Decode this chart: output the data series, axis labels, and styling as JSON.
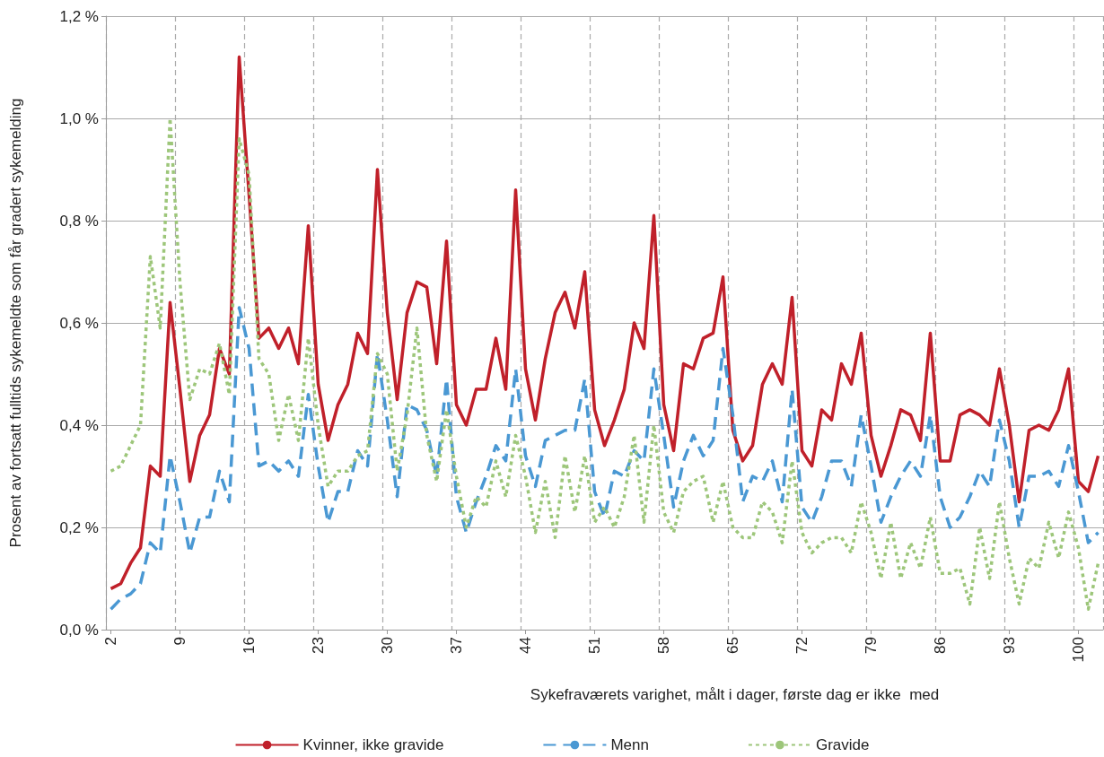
{
  "chart_data": {
    "type": "line",
    "xlabel": "Sykefraværets varighet, målt i dager, første dag er ikke  med",
    "ylabel": "Prosent av fortsatt fulltids sykemeldte som får gradert sykemelding",
    "categories": [
      "2",
      null,
      null,
      null,
      null,
      null,
      null,
      "9",
      null,
      null,
      null,
      null,
      null,
      null,
      "16",
      null,
      null,
      null,
      null,
      null,
      null,
      "23",
      null,
      null,
      null,
      null,
      null,
      null,
      "30",
      null,
      null,
      null,
      null,
      null,
      null,
      "37",
      null,
      null,
      null,
      null,
      null,
      null,
      "44",
      null,
      null,
      null,
      null,
      null,
      null,
      "51",
      null,
      null,
      null,
      null,
      null,
      null,
      "58",
      null,
      null,
      null,
      null,
      null,
      null,
      "65",
      null,
      null,
      null,
      null,
      null,
      null,
      "72",
      null,
      null,
      null,
      null,
      null,
      null,
      "79",
      null,
      null,
      null,
      null,
      null,
      null,
      "86",
      null,
      null,
      null,
      null,
      null,
      null,
      "93",
      null,
      null,
      null,
      null,
      null,
      null,
      "100",
      null,
      null
    ],
    "series": [
      {
        "name": "Kvinner, ikke gravide",
        "color": "#c0202a",
        "line_style": "solid",
        "values": [
          0.08,
          0.09,
          0.13,
          0.16,
          0.32,
          0.3,
          0.64,
          0.47,
          0.29,
          0.38,
          0.42,
          0.55,
          0.5,
          1.12,
          0.85,
          0.57,
          0.59,
          0.55,
          0.59,
          0.52,
          0.79,
          0.48,
          0.37,
          0.44,
          0.48,
          0.58,
          0.54,
          0.9,
          0.62,
          0.45,
          0.62,
          0.68,
          0.67,
          0.52,
          0.76,
          0.44,
          0.4,
          0.47,
          0.47,
          0.57,
          0.47,
          0.86,
          0.51,
          0.41,
          0.53,
          0.62,
          0.66,
          0.59,
          0.7,
          0.43,
          0.36,
          0.41,
          0.47,
          0.6,
          0.55,
          0.81,
          0.44,
          0.35,
          0.52,
          0.51,
          0.57,
          0.58,
          0.69,
          0.39,
          0.33,
          0.36,
          0.48,
          0.52,
          0.48,
          0.65,
          0.35,
          0.32,
          0.43,
          0.41,
          0.52,
          0.48,
          0.58,
          0.38,
          0.3,
          0.36,
          0.43,
          0.42,
          0.37,
          0.58,
          0.33,
          0.33,
          0.42,
          0.43,
          0.42,
          0.4,
          0.51,
          0.4,
          0.25,
          0.39,
          0.4,
          0.39,
          0.43,
          0.51,
          0.29,
          0.27,
          0.34
        ]
      },
      {
        "name": "Menn",
        "color": "#4a98d3",
        "line_style": "dashed",
        "values": [
          0.04,
          0.06,
          0.07,
          0.09,
          0.17,
          0.15,
          0.34,
          0.25,
          0.15,
          0.22,
          0.22,
          0.31,
          0.25,
          0.63,
          0.55,
          0.32,
          0.33,
          0.31,
          0.33,
          0.3,
          0.46,
          0.32,
          0.21,
          0.27,
          0.27,
          0.35,
          0.32,
          0.54,
          0.41,
          0.26,
          0.44,
          0.43,
          0.39,
          0.3,
          0.49,
          0.26,
          0.19,
          0.25,
          0.3,
          0.36,
          0.33,
          0.51,
          0.34,
          0.28,
          0.37,
          0.38,
          0.39,
          0.39,
          0.49,
          0.27,
          0.22,
          0.31,
          0.3,
          0.35,
          0.33,
          0.51,
          0.38,
          0.24,
          0.33,
          0.38,
          0.34,
          0.37,
          0.55,
          0.42,
          0.25,
          0.3,
          0.29,
          0.33,
          0.25,
          0.47,
          0.24,
          0.21,
          0.26,
          0.33,
          0.33,
          0.28,
          0.42,
          0.32,
          0.21,
          0.26,
          0.3,
          0.33,
          0.3,
          0.42,
          0.26,
          0.2,
          0.22,
          0.26,
          0.31,
          0.28,
          0.41,
          0.33,
          0.2,
          0.3,
          0.3,
          0.31,
          0.28,
          0.36,
          0.27,
          0.17,
          0.19
        ]
      },
      {
        "name": "Gravide",
        "color": "#9dc67a",
        "line_style": "dotted",
        "values": [
          0.31,
          0.32,
          0.36,
          0.4,
          0.73,
          0.59,
          1.0,
          0.68,
          0.45,
          0.51,
          0.5,
          0.56,
          0.46,
          0.96,
          0.89,
          0.53,
          0.5,
          0.37,
          0.46,
          0.37,
          0.57,
          0.4,
          0.28,
          0.31,
          0.31,
          0.34,
          0.35,
          0.54,
          0.5,
          0.31,
          0.42,
          0.59,
          0.38,
          0.29,
          0.43,
          0.3,
          0.2,
          0.26,
          0.24,
          0.33,
          0.26,
          0.38,
          0.3,
          0.19,
          0.29,
          0.18,
          0.34,
          0.23,
          0.34,
          0.21,
          0.24,
          0.2,
          0.26,
          0.38,
          0.21,
          0.4,
          0.23,
          0.19,
          0.27,
          0.29,
          0.3,
          0.21,
          0.29,
          0.2,
          0.18,
          0.18,
          0.25,
          0.23,
          0.17,
          0.33,
          0.19,
          0.15,
          0.17,
          0.18,
          0.18,
          0.15,
          0.25,
          0.19,
          0.1,
          0.21,
          0.1,
          0.17,
          0.12,
          0.22,
          0.11,
          0.11,
          0.12,
          0.05,
          0.2,
          0.1,
          0.25,
          0.14,
          0.05,
          0.14,
          0.12,
          0.21,
          0.14,
          0.23,
          0.16,
          0.04,
          0.13
        ]
      }
    ],
    "ylim": [
      0,
      1.2
    ],
    "yticks": [
      {
        "value": 0,
        "label": "0,0 %"
      },
      {
        "value": 0.2,
        "label": "0,2 %"
      },
      {
        "value": 0.4,
        "label": "0,4 %"
      },
      {
        "value": 0.6,
        "label": "0,6 %"
      },
      {
        "value": 0.8,
        "label": "0,8 %"
      },
      {
        "value": 1.0,
        "label": "1,0 %"
      },
      {
        "value": 1.2,
        "label": "1,2 %"
      }
    ],
    "grid": true,
    "legend": "bottom",
    "marker": "none"
  }
}
